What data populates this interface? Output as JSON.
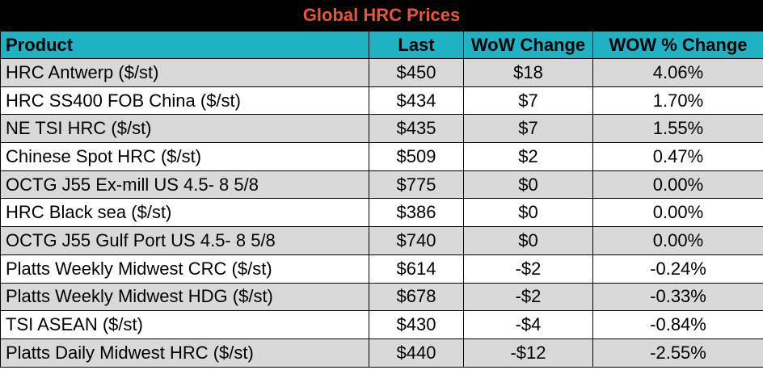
{
  "title": "Global HRC Prices",
  "columns": [
    "Product",
    "Last",
    "WoW Change",
    "WOW % Change"
  ],
  "rows": [
    [
      "HRC Antwerp ($/st)",
      "$450",
      "$18",
      "4.06%"
    ],
    [
      "HRC SS400 FOB China ($/st)",
      "$434",
      "$7",
      "1.70%"
    ],
    [
      "NE TSI HRC ($/st)",
      "$435",
      "$7",
      "1.55%"
    ],
    [
      "Chinese Spot HRC ($/st)",
      "$509",
      "$2",
      "0.47%"
    ],
    [
      "OCTG J55 Ex-mill US 4.5- 8 5/8",
      "$775",
      "$0",
      "0.00%"
    ],
    [
      "HRC Black sea ($/st)",
      "$386",
      "$0",
      "0.00%"
    ],
    [
      "OCTG J55 Gulf Port US 4.5- 8 5/8",
      "$740",
      "$0",
      "0.00%"
    ],
    [
      "Platts Weekly Midwest CRC ($/st)",
      "$614",
      "-$2",
      "-0.24%"
    ],
    [
      "Platts Weekly Midwest HDG ($/st)",
      "$678",
      "-$2",
      "-0.33%"
    ],
    [
      "TSI ASEAN ($/st)",
      "$430",
      "-$4",
      "-0.84%"
    ],
    [
      "Platts Daily Midwest HRC ($/st)",
      "$440",
      "-$12",
      "-2.55%"
    ]
  ],
  "colors": {
    "title_background": "#000000",
    "title_text": "#e8563a",
    "header_background": "#1fb2c4",
    "row_shade": "#d9d9d9"
  }
}
